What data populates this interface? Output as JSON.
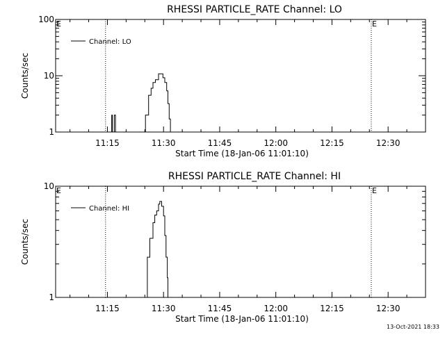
{
  "chart_data": [
    {
      "type": "line",
      "title": "RHESSI PARTICLE_RATE Channel: LO",
      "xlabel": "Start Time (18-Jan-06 11:01:10)",
      "ylabel": "Counts/sec",
      "y_scale": "log",
      "xlim": [
        "11:01:10",
        "12:40:00"
      ],
      "ylim": [
        1,
        100
      ],
      "x_ticks": [
        "11:15",
        "11:30",
        "11:45",
        "12:00",
        "12:15",
        "12:30"
      ],
      "y_ticks": [
        "1",
        "10",
        "100"
      ],
      "legend": {
        "placement": "top-left",
        "entries": [
          "Channel: LO"
        ]
      },
      "markers": [
        {
          "label": "E",
          "time": "11:01:10"
        },
        {
          "label": "E",
          "time": "12:25:30"
        }
      ],
      "vlines": [
        "11:14:30",
        "12:25:30",
        "12:40:00"
      ],
      "series": [
        {
          "name": "Channel: LO",
          "segments": [
            {
              "x": [
                "11:16:00",
                "11:16:10",
                "11:16:20",
                "11:16:40",
                "11:16:50",
                "11:17:10"
              ],
              "y": [
                1,
                2,
                1,
                1,
                2,
                1
              ]
            },
            {
              "x": [
                "11:24:10",
                "11:25:10",
                "11:26:00",
                "11:26:40",
                "11:27:10",
                "11:27:50",
                "11:28:40",
                "11:29:20",
                "11:29:50",
                "11:30:20",
                "11:30:50",
                "11:31:10",
                "11:31:30",
                "11:31:50"
              ],
              "y": [
                1,
                2,
                4.5,
                6,
                7.6,
                8.5,
                10.8,
                10.8,
                9.2,
                7.6,
                5.4,
                3.2,
                1.7,
                1
              ]
            }
          ]
        }
      ]
    },
    {
      "type": "line",
      "title": "RHESSI PARTICLE_RATE Channel: HI",
      "xlabel": "Start Time (18-Jan-06 11:01:10)",
      "ylabel": "Counts/sec",
      "y_scale": "log",
      "xlim": [
        "11:01:10",
        "12:40:00"
      ],
      "ylim": [
        1,
        10
      ],
      "x_ticks": [
        "11:15",
        "11:30",
        "11:45",
        "12:00",
        "12:15",
        "12:30"
      ],
      "y_ticks": [
        "1",
        "10"
      ],
      "legend": {
        "placement": "top-left",
        "entries": [
          "Channel: HI"
        ]
      },
      "markers": [
        {
          "label": "E",
          "time": "11:01:10"
        },
        {
          "label": "E",
          "time": "12:25:30"
        }
      ],
      "vlines": [
        "11:14:30",
        "12:25:30",
        "12:40:00"
      ],
      "series": [
        {
          "name": "Channel: HI",
          "segments": [
            {
              "x": [
                "11:25:00",
                "11:25:40",
                "11:26:20",
                "11:27:10",
                "11:27:40",
                "11:28:10",
                "11:28:40",
                "11:29:00",
                "11:29:30",
                "11:30:00",
                "11:30:20",
                "11:30:40",
                "11:31:00",
                "11:31:10"
              ],
              "y": [
                1,
                2.3,
                3.4,
                4.7,
                5.5,
                6,
                6.9,
                7.3,
                6.6,
                5.4,
                3.6,
                2.3,
                1.5,
                1
              ]
            }
          ]
        }
      ]
    }
  ],
  "stamp": "13-Oct-2021 18:33"
}
